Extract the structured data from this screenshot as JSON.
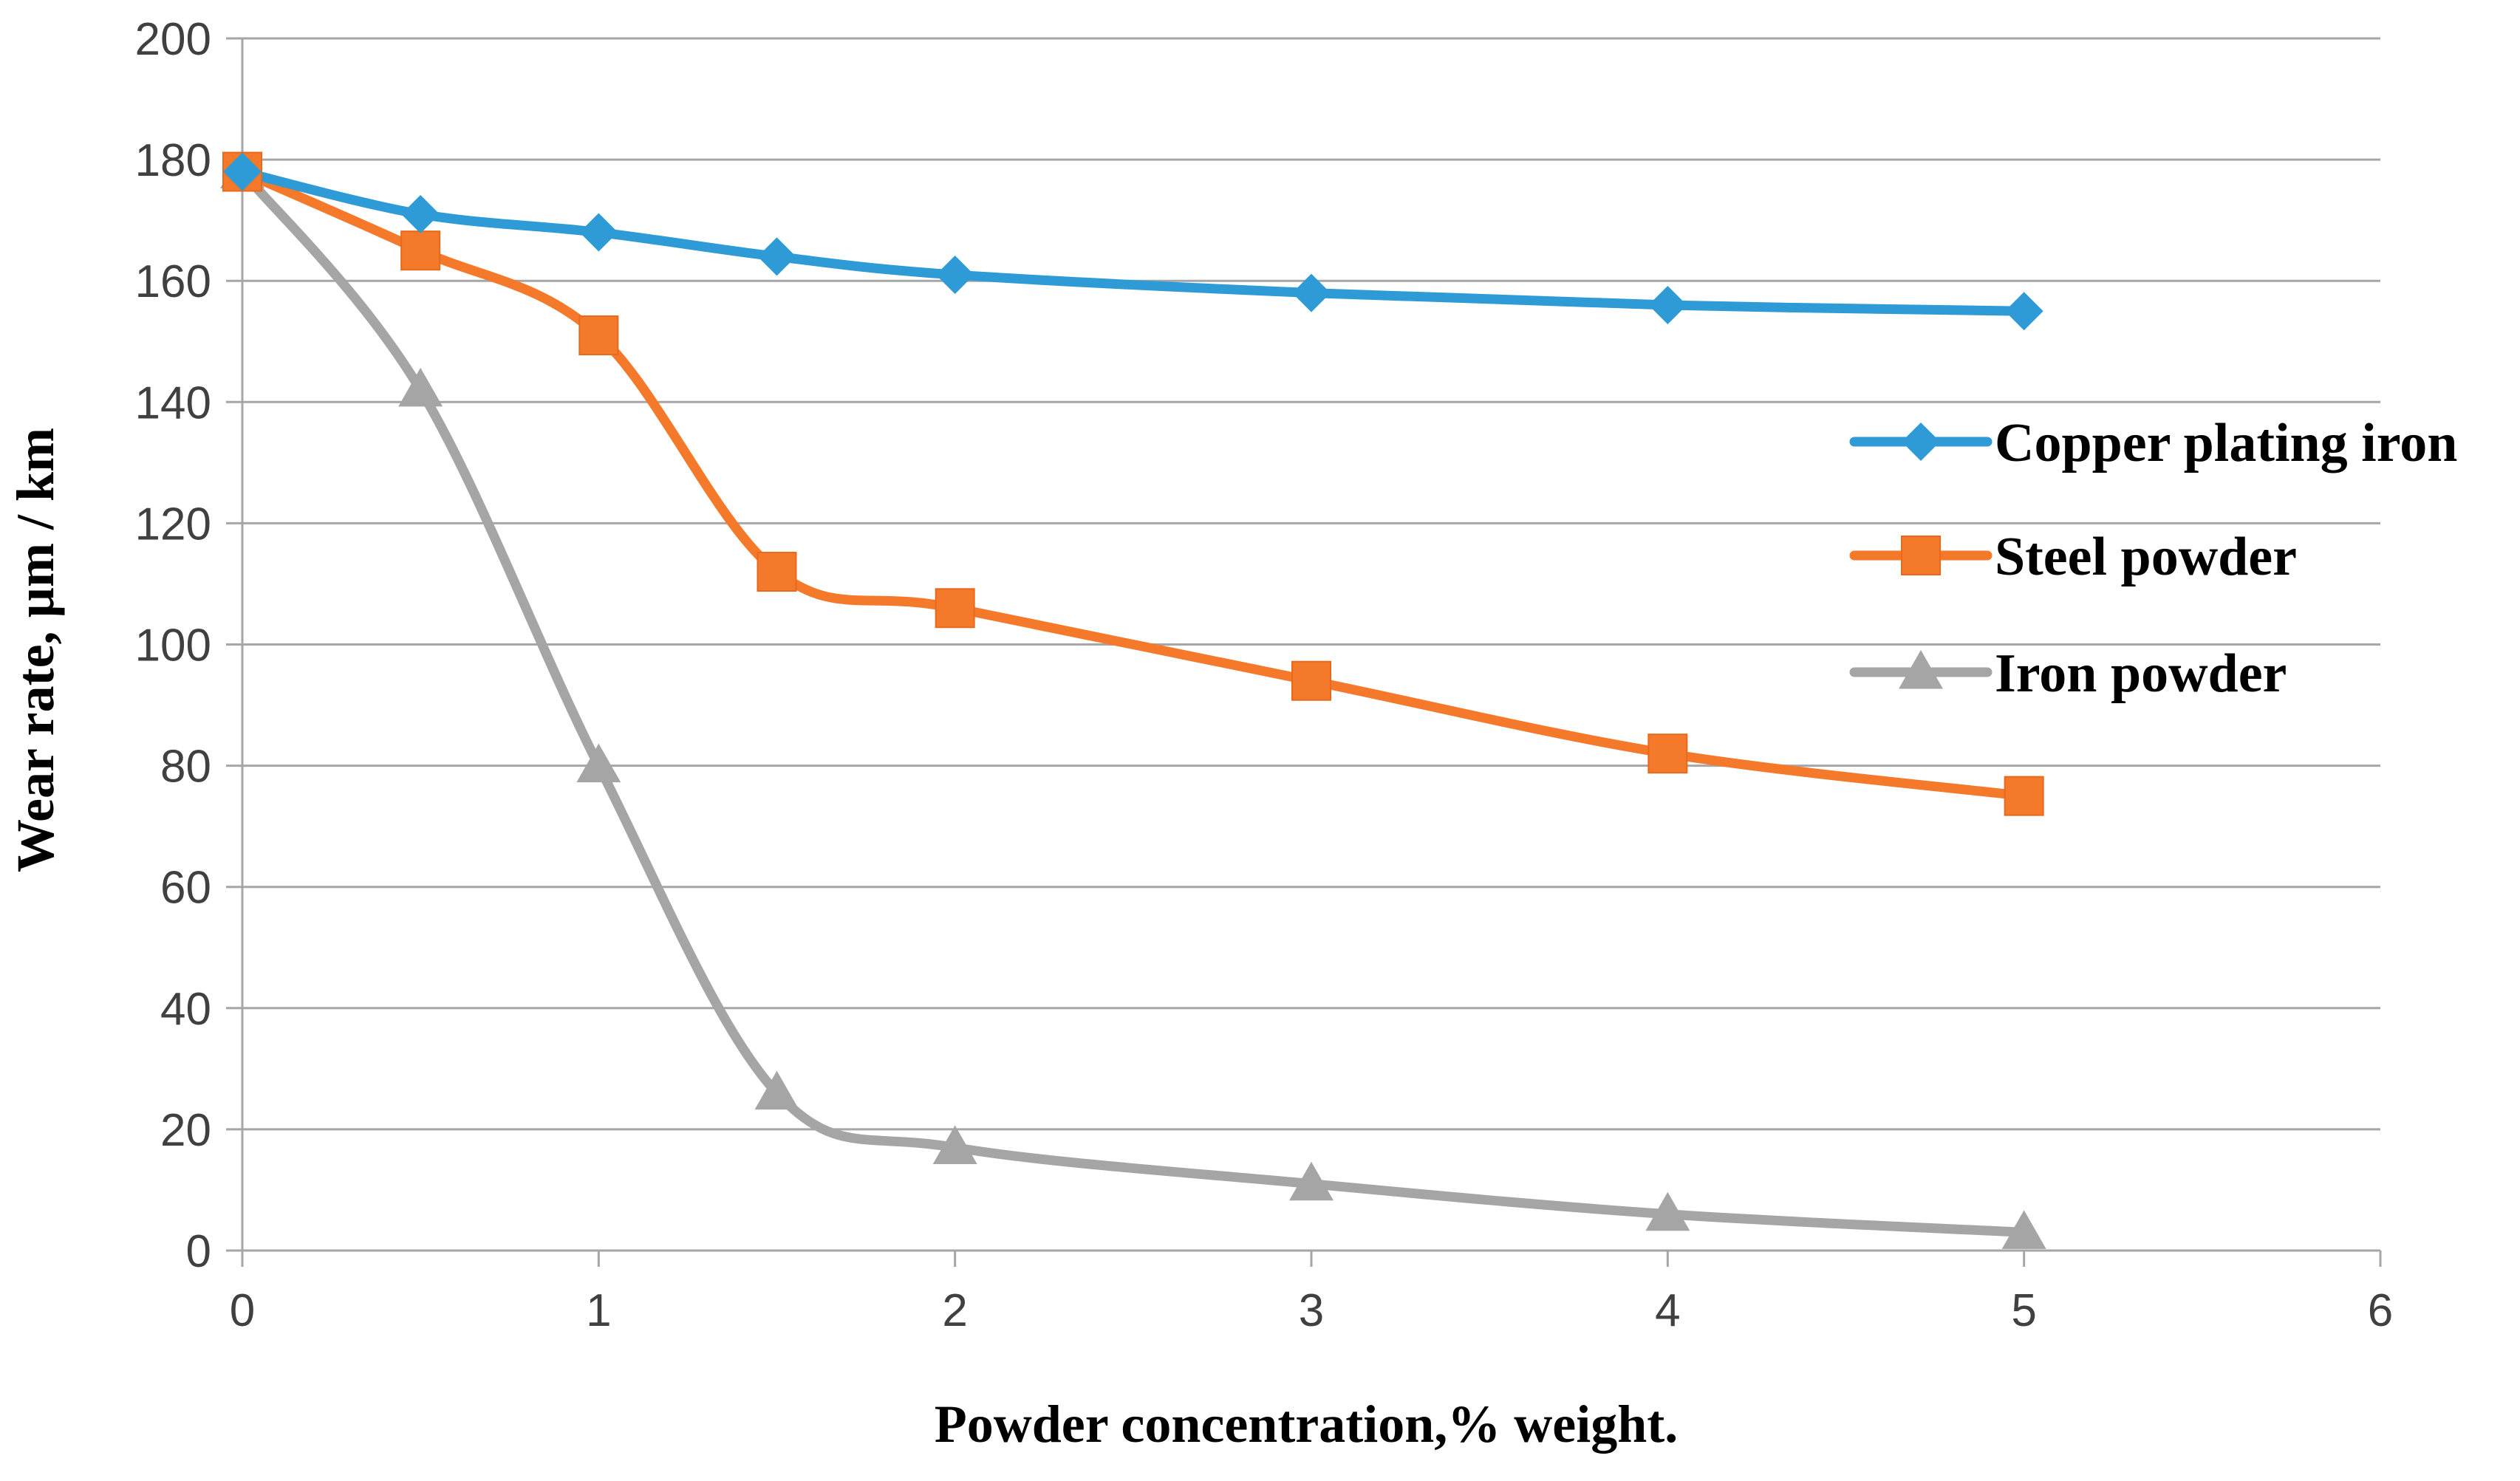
{
  "chart_data": {
    "type": "line",
    "title": "",
    "xlabel": "Powder concentration,% weight.",
    "ylabel": "Wear rate, µm / km",
    "xlim": [
      0,
      6
    ],
    "ylim": [
      0,
      200
    ],
    "xticks": [
      "0",
      "1",
      "2",
      "3",
      "4",
      "5",
      "6"
    ],
    "yticks": [
      "0",
      "20",
      "40",
      "60",
      "80",
      "100",
      "120",
      "140",
      "160",
      "180",
      "200"
    ],
    "grid": "horizontal",
    "legend_position": "right",
    "series": [
      {
        "name": "Copper plating iron",
        "color": "#2E9BD6",
        "marker": "diamond",
        "x": [
          0,
          0.5,
          1,
          1.5,
          2,
          3,
          4,
          5
        ],
        "y": [
          178,
          171,
          168,
          164,
          161,
          158,
          156,
          155
        ]
      },
      {
        "name": "Steel powder",
        "color": "#F5792A",
        "marker": "square",
        "x": [
          0,
          0.5,
          1,
          1.5,
          2,
          3,
          4,
          5
        ],
        "y": [
          178,
          165,
          151,
          112,
          106,
          94,
          82,
          75
        ]
      },
      {
        "name": "Iron powder",
        "color": "#A5A5A5",
        "marker": "triangle",
        "x": [
          0,
          0.5,
          1,
          1.5,
          2,
          3,
          4,
          5
        ],
        "y": [
          178,
          142,
          80,
          26,
          17,
          11,
          6,
          3
        ]
      }
    ]
  }
}
